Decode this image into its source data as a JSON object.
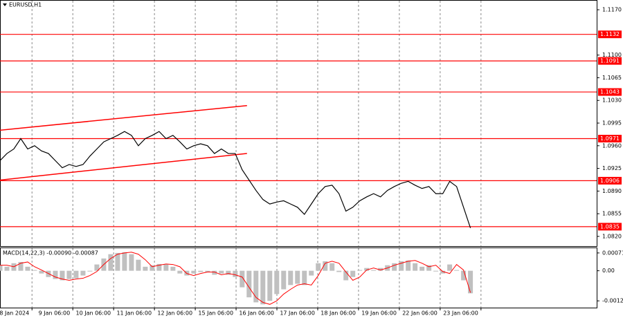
{
  "chart_data": [
    {
      "type": "line",
      "title": "EURUSD,H1",
      "x": [
        0,
        4,
        8,
        12,
        16,
        20,
        24,
        28,
        32,
        36,
        40,
        44,
        48,
        52,
        56,
        60,
        64,
        68,
        72,
        76,
        80,
        84,
        88,
        92,
        96,
        100,
        104,
        108,
        112,
        116,
        120,
        124,
        128,
        132,
        136,
        140,
        144,
        148,
        152,
        156,
        160,
        164,
        168,
        172,
        176,
        180,
        184,
        188,
        192,
        196,
        200,
        204,
        208,
        212,
        216,
        220,
        224,
        228,
        232,
        236,
        240,
        244,
        248,
        252,
        256,
        260,
        264,
        268,
        272
      ],
      "series": [
        {
          "color": "#000000",
          "values": [
            1.0937,
            1.0948,
            1.0955,
            1.0971,
            1.0955,
            1.096,
            1.0952,
            1.0948,
            1.0937,
            1.0926,
            1.0931,
            1.0928,
            1.0931,
            1.0944,
            1.0955,
            1.0966,
            1.0971,
            1.0976,
            1.0982,
            1.0976,
            1.096,
            1.0971,
            1.0976,
            1.0982,
            1.0971,
            1.0976,
            1.0966,
            1.0955,
            1.096,
            1.0963,
            1.096,
            1.0948,
            1.0955,
            1.0948,
            1.0948,
            1.0923,
            1.0907,
            1.0891,
            1.0877,
            1.087,
            1.0873,
            1.0875,
            1.087,
            1.0865,
            1.0854,
            1.087,
            1.0886,
            1.0897,
            1.0899,
            1.0886,
            1.0859,
            1.0865,
            1.0875,
            1.0881,
            1.0886,
            1.0881,
            1.0891,
            1.0897,
            1.0902,
            1.0905,
            1.0899,
            1.0894,
            1.0897,
            1.0886,
            1.0886,
            1.0905,
            1.0897,
            1.0865,
            1.0833
          ]
        }
      ],
      "xlim": [
        0,
        345
      ],
      "ylim": [
        1.0805,
        1.1184
      ],
      "yticks": [
        {
          "value": 1.117,
          "label": "1.1170"
        },
        {
          "value": 1.11,
          "label": "1.1100"
        },
        {
          "value": 1.1065,
          "label": "1.1065"
        },
        {
          "value": 1.103,
          "label": "1.1030"
        },
        {
          "value": 1.0995,
          "label": "1.0995"
        },
        {
          "value": 1.096,
          "label": "1.0960"
        },
        {
          "value": 1.0925,
          "label": "1.0925"
        },
        {
          "value": 1.089,
          "label": "1.0890"
        },
        {
          "value": 1.0855,
          "label": "1.0855"
        },
        {
          "value": 1.082,
          "label": "1.0820"
        }
      ],
      "xticks": [
        {
          "value": 18.5,
          "label": "8 Jan 2024"
        },
        {
          "value": 42.1,
          "label": "9 Jan 06:00"
        },
        {
          "value": 65.7,
          "label": "10 Jan 06:00"
        },
        {
          "value": 89.3,
          "label": "11 Jan 06:00"
        },
        {
          "value": 112.9,
          "label": "12 Jan 06:00"
        },
        {
          "value": 136.5,
          "label": "15 Jan 06:00"
        },
        {
          "value": 160.1,
          "label": "16 Jan 06:00"
        },
        {
          "value": 183.7,
          "label": "17 Jan 06:00"
        },
        {
          "value": 207.3,
          "label": "18 Jan 06:00"
        },
        {
          "value": 230.9,
          "label": "19 Jan 06:00"
        },
        {
          "value": 254.5,
          "label": "22 Jan 06:00"
        },
        {
          "value": 278.1,
          "label": "23 Jan 06:00"
        }
      ],
      "grid": true,
      "level_color": "#ff0000",
      "levels": [
        1.1132,
        1.1091,
        1.1043,
        1.0971,
        1.0906,
        1.0835
      ],
      "trendlines": [
        {
          "x": [
            0,
            142.8
          ],
          "y": [
            1.0984,
            1.1022
          ]
        },
        {
          "x": [
            0,
            142.8
          ],
          "y": [
            1.0907,
            1.0948
          ]
        }
      ]
    },
    {
      "type": "bar",
      "title": "MACD(14,22,3) -0.00090 -0.00087",
      "color": "#c0c0c0",
      "signal_color": "#ff0000",
      "values": [
        0.00022,
        0.00016,
        0.0003,
        0.00035,
        0.00016,
        3e-05,
        -0.00011,
        -0.00025,
        -0.00033,
        -0.00038,
        -0.00033,
        -0.0003,
        -0.00019,
        -3e-05,
        0.00025,
        0.00049,
        0.00066,
        0.00071,
        0.00074,
        0.00066,
        0.00044,
        0.00016,
        0.00022,
        0.00027,
        0.00025,
        0.00016,
        -0.00011,
        -0.00019,
        -0.00011,
        -5e-05,
        -5e-05,
        -0.00016,
        -0.00011,
        -0.00016,
        -0.00025,
        -0.00066,
        -0.00106,
        -0.00126,
        -0.00134,
        -0.0012,
        -0.00093,
        -0.00074,
        -0.00057,
        -0.00052,
        -0.00057,
        -0.00019,
        0.0003,
        0.00038,
        0.0003,
        -5e-05,
        -0.00038,
        -0.00025,
        3e-05,
        0.00011,
        3e-05,
        0.00011,
        0.00022,
        0.0003,
        0.00038,
        0.00041,
        0.0003,
        0.00016,
        0.00022,
        -3e-05,
        -0.00011,
        0.00025,
        3e-05,
        -0.00038,
        -0.0009
      ],
      "signal": [
        0.00022,
        0.00022,
        0.00016,
        0.0003,
        0.00035,
        0.00016,
        3e-05,
        -0.00011,
        -0.00025,
        -0.00033,
        -0.00038,
        -0.00033,
        -0.0003,
        -0.00019,
        -3e-05,
        0.00025,
        0.00049,
        0.00066,
        0.00071,
        0.00074,
        0.00066,
        0.00044,
        0.00016,
        0.00022,
        0.00027,
        0.00025,
        0.00016,
        -0.00011,
        -0.00019,
        -0.00011,
        -5e-05,
        -5e-05,
        -0.00016,
        -0.00011,
        -0.00016,
        -0.00025,
        -0.00066,
        -0.00106,
        -0.00126,
        -0.00134,
        -0.0012,
        -0.00093,
        -0.00074,
        -0.00057,
        -0.00052,
        -0.00057,
        -0.00019,
        0.0003,
        0.00038,
        0.0003,
        -5e-05,
        -0.00038,
        -0.00025,
        3e-05,
        0.00011,
        3e-05,
        0.00011,
        0.00022,
        0.0003,
        0.00038,
        0.00041,
        0.0003,
        0.00016,
        0.00022,
        -3e-05,
        -0.00011,
        0.00025,
        3e-05,
        -0.00087
      ],
      "ylim": [
        -0.00147,
        0.0009
      ],
      "yticks": [
        0.00071,
        {
          "value": 0,
          "label": "0.00"
        },
        -0.0012
      ]
    }
  ]
}
